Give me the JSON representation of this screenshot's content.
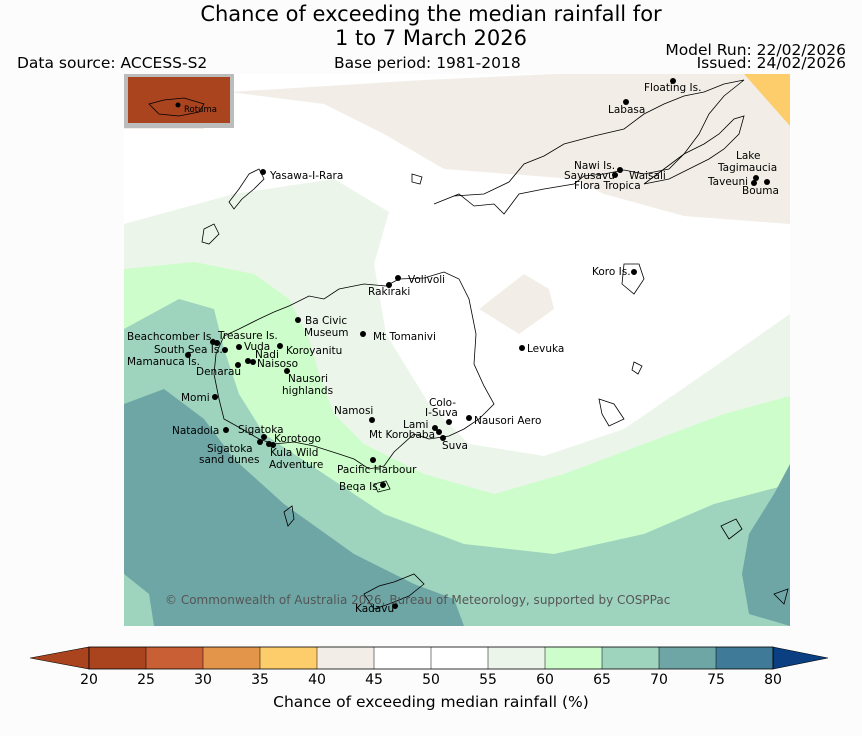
{
  "title_line1": "Chance of exceeding the median rainfall for",
  "title_line2": "1 to 7 March 2026",
  "data_source": "Data source: ACCESS-S2",
  "base_period": "Base period: 1981-2018",
  "model_run": "Model Run: 22/02/2026",
  "issued": "Issued: 24/02/2026",
  "copyright": "© Commonwealth of Australia 2026, Bureau of Meteorology, supported by COSPPac",
  "inset_label": "Rotuma",
  "colors": {
    "c20": "#a9441f",
    "c25": "#c95f34",
    "c30": "#e3954a",
    "c35": "#fdcd6c",
    "c40": "#f2eee7",
    "c45": "#ffffff",
    "c50": "#ffffff",
    "c55": "#ebf5ea",
    "c60": "#cdfdcb",
    "c65": "#9ed3bd",
    "c70": "#6ea6a6",
    "c75": "#3f7a99",
    "c80": "#0a3f82"
  },
  "colorbar": {
    "ticks": [
      "20",
      "25",
      "30",
      "35",
      "40",
      "45",
      "50",
      "55",
      "60",
      "65",
      "70",
      "75",
      "80"
    ],
    "label": "Chance of exceeding median rainfall (%)"
  },
  "places": {
    "floating": "Floating Is.",
    "labasa": "Labasa",
    "nawi": "Nawi Is.",
    "savusavu": "Savusavu",
    "waisali": "Waisali",
    "flora": "Flora Tropica",
    "lake1": "Lake",
    "lake2": "Tagimaucia",
    "taveuni": "Taveuni",
    "bouma": "Bouma",
    "yasawa": "Yasawa-I-Rara",
    "koro": "Koro Is.",
    "volivoli": "Volivoli",
    "rakiraki": "Rakiraki",
    "bacivic1": "Ba Civic",
    "bacivic2": "Museum",
    "tomanivi": "Mt Tomanivi",
    "levuka": "Levuka",
    "beachcomber": "Beachcomber Is.",
    "treasure": "Treasure Is.",
    "southsea": "South Sea Is.",
    "vuda": "Vuda",
    "koroyanitu": "Koroyanitu",
    "nadi": "Nadi",
    "mamanuca": "Mamanuca Is.",
    "naisoso": "Naisoso",
    "denarau": "Denarau",
    "nausori1": "Nausori",
    "nausori2": "highlands",
    "momi": "Momi",
    "colo1": "Colo-",
    "colo2": "I-Suva",
    "namosi": "Namosi",
    "nausoriaero": "Nausori Aero",
    "lami": "Lami",
    "korobaba": "Mt Korobaba",
    "suva": "Suva",
    "natadola": "Natadola",
    "sigatoka": "Sigatoka",
    "korotogo": "Korotogo",
    "sigdunes1": "Sigatoka",
    "sigdunes2": "sand dunes",
    "kula1": "Kula Wild",
    "kula2": "Adventure",
    "pacific": "Pacific Harbour",
    "beqa": "Beqa Is.",
    "kadavu": "Kadavu"
  }
}
